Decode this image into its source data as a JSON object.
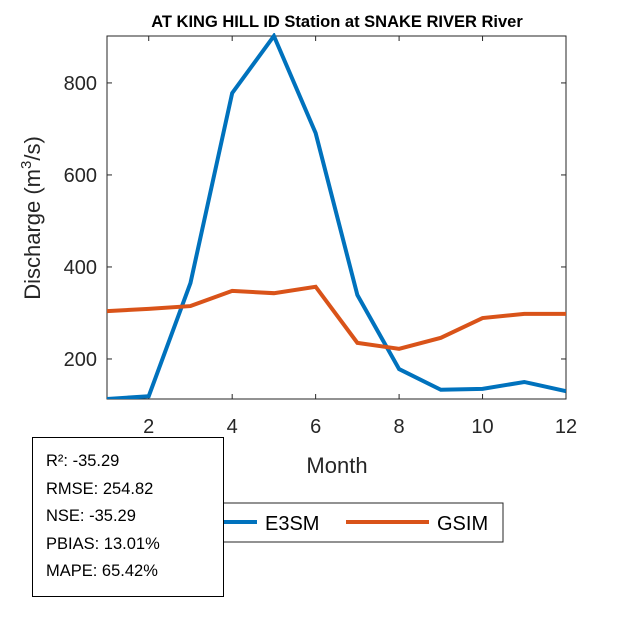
{
  "chart_data": {
    "type": "line",
    "title": "AT KING HILL ID  Station at  SNAKE RIVER  River",
    "xlabel": "Month",
    "ylabel": "Discharge (m³/s)",
    "ylabel_parts": {
      "main": "Discharge (m",
      "sup": "3",
      "tail": "/s)"
    },
    "x": [
      1,
      2,
      3,
      4,
      5,
      6,
      7,
      8,
      9,
      10,
      11,
      12
    ],
    "xlim": [
      1,
      12
    ],
    "ylim": [
      113,
      902
    ],
    "xticks": [
      2,
      4,
      6,
      8,
      10,
      12
    ],
    "yticks": [
      200,
      400,
      600,
      800
    ],
    "xtick_labels": [
      "2",
      "4",
      "6",
      "8",
      "10",
      "12"
    ],
    "ytick_labels": [
      "200",
      "400",
      "600",
      "800"
    ],
    "grid": false,
    "legend_position": "bottom-outside",
    "series": [
      {
        "name": "E3SM",
        "color": "#0072BD",
        "values": [
          113,
          119,
          365,
          778,
          902,
          691,
          339,
          178,
          133,
          135,
          150,
          130
        ]
      },
      {
        "name": "GSIM",
        "color": "#D95319",
        "values": [
          304,
          309,
          315,
          348,
          343,
          357,
          235,
          222,
          246,
          289,
          298,
          298
        ]
      }
    ]
  },
  "stats": [
    "R²: -35.29",
    "RMSE: 254.82",
    "NSE: -35.29",
    "PBIAS: 13.01%",
    "MAPE: 65.42%"
  ]
}
